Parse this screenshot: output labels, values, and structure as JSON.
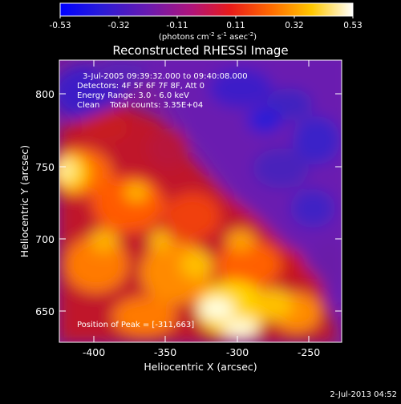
{
  "colorbar": {
    "tick_labels": [
      "-0.53",
      "-0.32",
      "-0.11",
      "0.11",
      "0.32",
      "0.53"
    ],
    "unit_main": "(photons cm",
    "unit_exp1": "-2",
    "unit_mid": " s",
    "unit_exp2": "-1",
    "unit_mid2": " asec",
    "unit_exp3": "-2",
    "unit_close": ")"
  },
  "title": "Reconstructed RHESSI Image",
  "annotations": {
    "time_range": "3-Jul-2005 09:39:32.000 to 09:40:08.000",
    "detectors": "Detectors: 4F 5F 6F 7F 8F, Att 0",
    "energy": "Energy Range: 3.0 - 6.0 keV",
    "clean": "Clean    Total counts: 3.35E+04",
    "peak": "Position of Peak = [-311,663]"
  },
  "axes": {
    "xlabel": "Heliocentric X (arcsec)",
    "ylabel": "Heliocentric Y (arcsec)",
    "x_ticks": [
      "-400",
      "-350",
      "-300",
      "-250"
    ],
    "y_ticks": [
      "650",
      "700",
      "750",
      "800"
    ],
    "x_range": [
      -418,
      -222
    ],
    "y_range": [
      627,
      825
    ]
  },
  "footer": {
    "timestamp": "2-Jul-2013 04:52"
  },
  "colors": {
    "background": "#000000",
    "text": "#ffffff"
  }
}
